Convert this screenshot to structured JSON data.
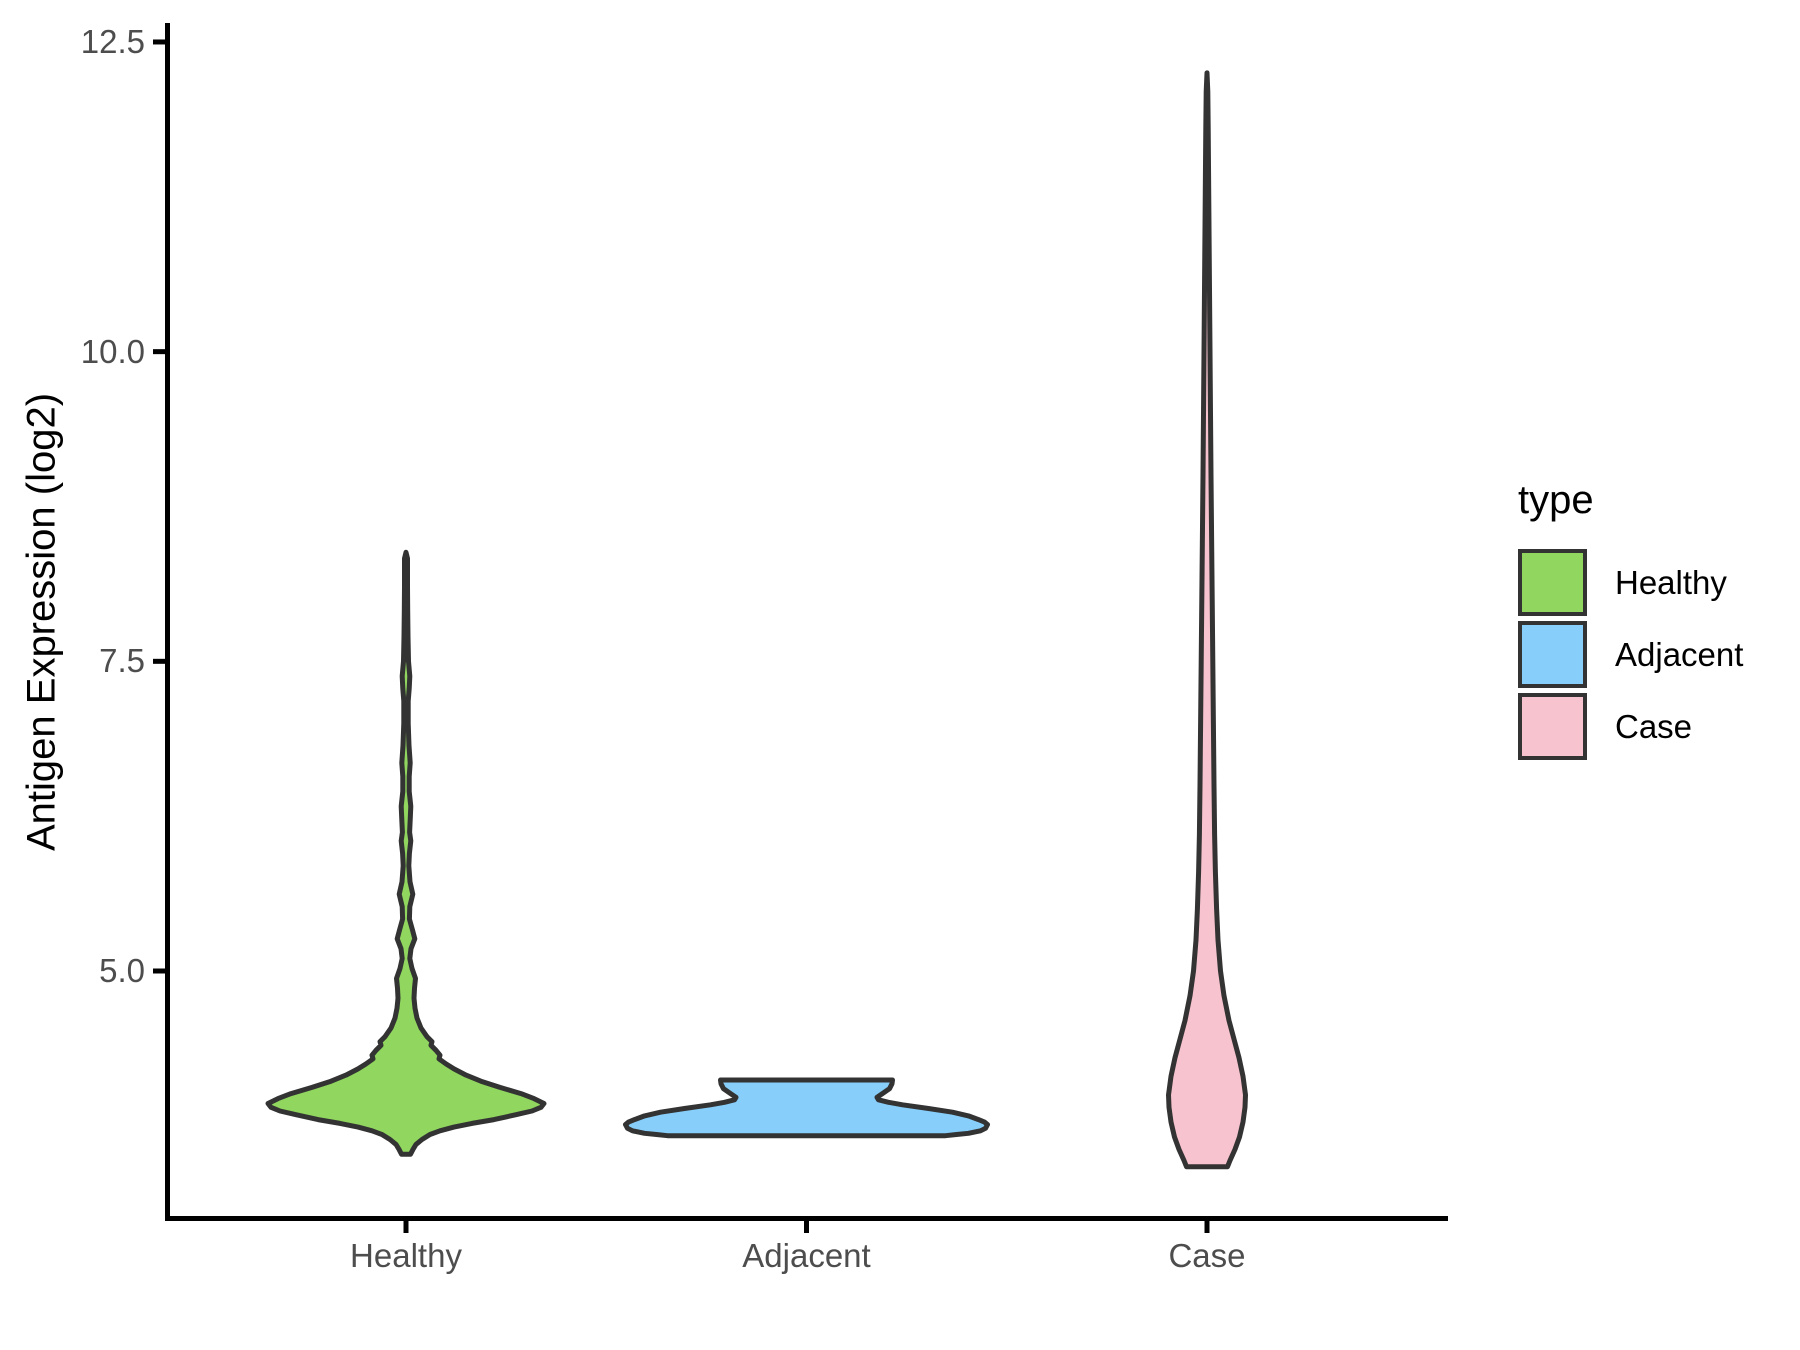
{
  "colors": {
    "background": "#ffffff",
    "axis_line": "#000000",
    "violin_stroke": "#333333",
    "tick_text": "#4D4D4D",
    "title_text": "#000000",
    "healthy_fill": "#90D65F",
    "adjacent_fill": "#87CEFA",
    "case_fill": "#F6C3CE"
  },
  "chart_data": {
    "type": "violin",
    "title": "",
    "xlabel": "",
    "ylabel": "Antigen Expression (log2)",
    "ylim": [
      3.0,
      12.65
    ],
    "grid": false,
    "y_ticks": [
      12.5,
      10.0,
      7.5,
      5.0
    ],
    "y_tick_labels": [
      "12.5",
      "10.0",
      "7.5",
      "5.0"
    ],
    "categories": [
      "Healthy",
      "Adjacent",
      "Case"
    ],
    "legend": {
      "title": "type",
      "position": "right",
      "entries": [
        {
          "label": "Healthy",
          "color": "#90D65F"
        },
        {
          "label": "Adjacent",
          "color": "#87CEFA"
        },
        {
          "label": "Case",
          "color": "#F6C3CE"
        }
      ]
    },
    "profile_width_units": "half-width in screen px at 1800px image width",
    "series": [
      {
        "name": "Healthy",
        "color": "#90D65F",
        "value_range": [
          3.51,
          8.38
        ],
        "peak_value": 3.93,
        "profile": [
          [
            8.38,
            0
          ],
          [
            8.33,
            1.5
          ],
          [
            8.1,
            1.5
          ],
          [
            7.9,
            1.7
          ],
          [
            7.7,
            2
          ],
          [
            7.5,
            2.5
          ],
          [
            7.38,
            3.8
          ],
          [
            7.28,
            3.2
          ],
          [
            7.18,
            2.2
          ],
          [
            7.0,
            2.2
          ],
          [
            6.82,
            3
          ],
          [
            6.68,
            4.2
          ],
          [
            6.57,
            3.2
          ],
          [
            6.45,
            3.2
          ],
          [
            6.33,
            4.8
          ],
          [
            6.22,
            4.2
          ],
          [
            6.12,
            3.6
          ],
          [
            6.05,
            4.8
          ],
          [
            5.95,
            3.4
          ],
          [
            5.85,
            2.8
          ],
          [
            5.72,
            4
          ],
          [
            5.62,
            6.8
          ],
          [
            5.52,
            3.8
          ],
          [
            5.42,
            3.4
          ],
          [
            5.33,
            6.5
          ],
          [
            5.26,
            8.8
          ],
          [
            5.18,
            5
          ],
          [
            5.1,
            3.8
          ],
          [
            5.02,
            6
          ],
          [
            4.94,
            9.5
          ],
          [
            4.86,
            8.5
          ],
          [
            4.78,
            8
          ],
          [
            4.7,
            9
          ],
          [
            4.62,
            11
          ],
          [
            4.54,
            15
          ],
          [
            4.47,
            21
          ],
          [
            4.43,
            26
          ],
          [
            4.4,
            25
          ],
          [
            4.36,
            30
          ],
          [
            4.32,
            34
          ],
          [
            4.29,
            33
          ],
          [
            4.25,
            40
          ],
          [
            4.21,
            48
          ],
          [
            4.16,
            60
          ],
          [
            4.11,
            75
          ],
          [
            4.06,
            94
          ],
          [
            4.01,
            115
          ],
          [
            3.97,
            128
          ],
          [
            3.93,
            138
          ],
          [
            3.9,
            135
          ],
          [
            3.87,
            126
          ],
          [
            3.84,
            110
          ],
          [
            3.8,
            88
          ],
          [
            3.77,
            66
          ],
          [
            3.74,
            48
          ],
          [
            3.71,
            34
          ],
          [
            3.68,
            24
          ],
          [
            3.64,
            16
          ],
          [
            3.6,
            10
          ],
          [
            3.56,
            7
          ],
          [
            3.52,
            4.5
          ]
        ]
      },
      {
        "name": "Adjacent",
        "color": "#87CEFA",
        "value_range": [
          3.67,
          4.12
        ],
        "peak_value": 3.76,
        "profile": [
          [
            4.12,
            86
          ],
          [
            4.09,
            85.5
          ],
          [
            4.05,
            83
          ],
          [
            4.01,
            76
          ],
          [
            3.98,
            70.5
          ],
          [
            3.96,
            72
          ],
          [
            3.94,
            82
          ],
          [
            3.92,
            96
          ],
          [
            3.89,
            122
          ],
          [
            3.86,
            146
          ],
          [
            3.83,
            162
          ],
          [
            3.8,
            172
          ],
          [
            3.78,
            178
          ],
          [
            3.76,
            181
          ],
          [
            3.73,
            179
          ],
          [
            3.71,
            174
          ],
          [
            3.69,
            162
          ],
          [
            3.68,
            150
          ],
          [
            3.67,
            139
          ]
        ]
      },
      {
        "name": "Case",
        "color": "#F6C3CE",
        "value_range": [
          3.42,
          12.25
        ],
        "peak_value": 4.0,
        "profile": [
          [
            12.25,
            0
          ],
          [
            12.1,
            0.8
          ],
          [
            11.8,
            1.2
          ],
          [
            11.4,
            1.6
          ],
          [
            11.0,
            2
          ],
          [
            10.5,
            2.5
          ],
          [
            10.0,
            3
          ],
          [
            9.5,
            3.5
          ],
          [
            9.0,
            4
          ],
          [
            8.5,
            4.6
          ],
          [
            8.0,
            5.2
          ],
          [
            7.5,
            5.8
          ],
          [
            7.0,
            6.4
          ],
          [
            6.5,
            7
          ],
          [
            6.1,
            7.6
          ],
          [
            5.8,
            8.4
          ],
          [
            5.5,
            9.6
          ],
          [
            5.25,
            11
          ],
          [
            5.0,
            13.5
          ],
          [
            4.8,
            17
          ],
          [
            4.6,
            22
          ],
          [
            4.45,
            27
          ],
          [
            4.3,
            32
          ],
          [
            4.15,
            36
          ],
          [
            4.0,
            38.5
          ],
          [
            3.9,
            38
          ],
          [
            3.78,
            36
          ],
          [
            3.66,
            32.5
          ],
          [
            3.56,
            28
          ],
          [
            3.47,
            23
          ],
          [
            3.42,
            20.5
          ]
        ]
      }
    ]
  }
}
